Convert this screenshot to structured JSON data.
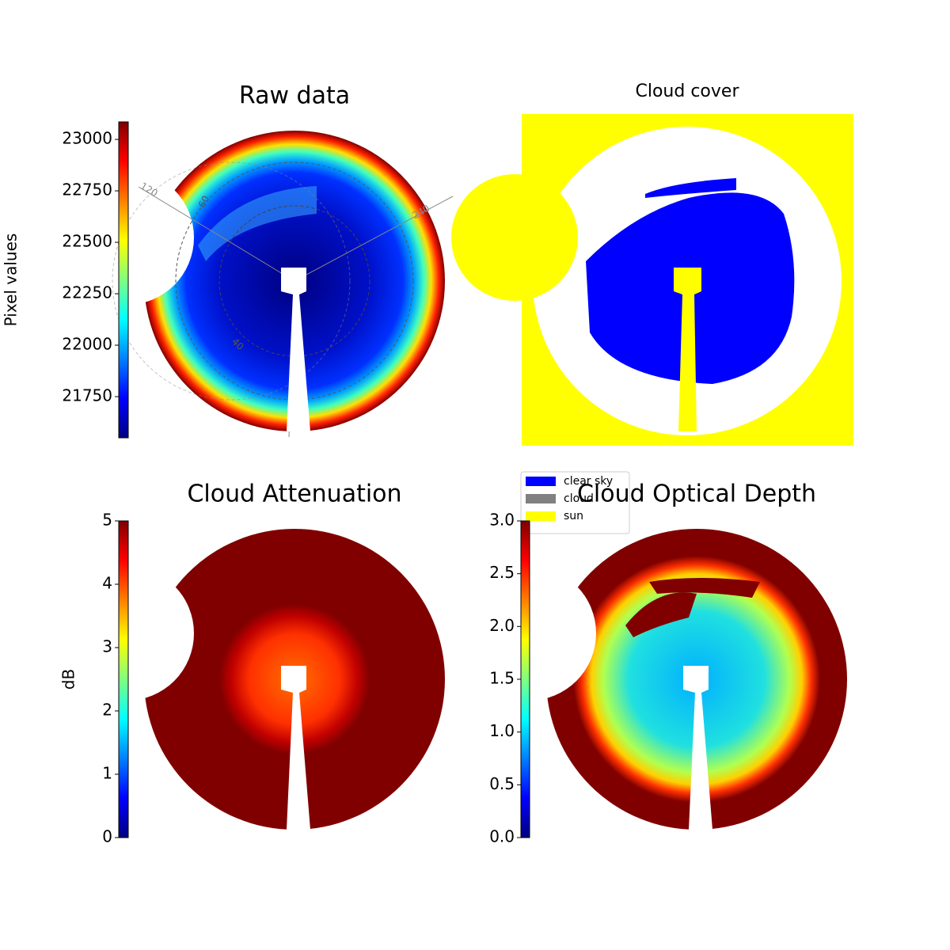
{
  "chart_data": [
    {
      "type": "image",
      "title": "Raw data",
      "colorbar_label": "Pixel values",
      "colormap": "jet",
      "ylim": [
        21550,
        23085
      ],
      "yticks": [
        21750,
        22000,
        22250,
        22500,
        22750,
        23000
      ],
      "annotations": [
        "120",
        "60",
        "240",
        "40"
      ]
    },
    {
      "type": "image",
      "title": "Cloud cover",
      "series": [
        {
          "name": "clear sky",
          "color": "#0000ff"
        },
        {
          "name": "cloud",
          "color": "#808080"
        },
        {
          "name": "sun",
          "color": "#ffff00"
        }
      ]
    },
    {
      "type": "image",
      "title": "Cloud Attenuation",
      "colorbar_label": "dB",
      "colormap": "jet",
      "ylim": [
        0,
        5
      ],
      "yticks": [
        0,
        1,
        2,
        3,
        4,
        5
      ]
    },
    {
      "type": "image",
      "title": "Cloud Optical Depth",
      "colormap": "jet",
      "ylim": [
        0,
        3
      ],
      "yticks": [
        {
          "value": 0,
          "label": "0.0"
        },
        {
          "value": 0.5,
          "label": "0.5"
        },
        {
          "value": 1,
          "label": "1.0"
        },
        {
          "value": 1.5,
          "label": "1.5"
        },
        {
          "value": 2,
          "label": "2.0"
        },
        {
          "value": 2.5,
          "label": "2.5"
        },
        {
          "value": 3,
          "label": "3.0"
        }
      ]
    }
  ]
}
